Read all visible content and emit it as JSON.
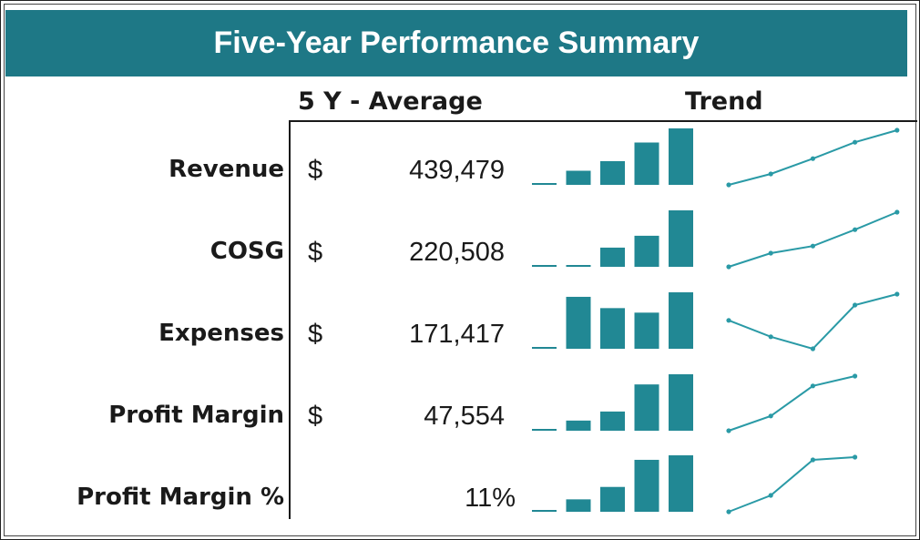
{
  "title": "Five-Year Performance Summary",
  "headers": {
    "average": "5 Y - Average",
    "trend": "Trend"
  },
  "colors": {
    "accent": "#1e7886",
    "bar": "#218894",
    "line": "#2a9aa6"
  },
  "rows": [
    {
      "label": "Revenue",
      "currency": "$",
      "value": "439,479"
    },
    {
      "label": "COSG",
      "currency": "$",
      "value": "220,508"
    },
    {
      "label": "Expenses",
      "currency": "$",
      "value": "171,417"
    },
    {
      "label": "Profit Margin",
      "currency": "$",
      "value": "47,554"
    },
    {
      "label": "Profit Margin %",
      "currency": "",
      "value": "11%"
    }
  ],
  "chart_data": {
    "type": "bar",
    "columns": [
      "5 Y - Average",
      "Trend"
    ],
    "categories": [
      "Revenue",
      "COSG",
      "Expenses",
      "Profit Margin",
      "Profit Margin %"
    ],
    "values": [
      439479,
      220508,
      171417,
      47554,
      0.11
    ],
    "sparklines": [
      {
        "name": "Revenue",
        "bars": [
          0.02,
          0.25,
          0.42,
          0.75,
          1.0
        ],
        "trend": [
          0,
          0.2,
          0.48,
          0.78,
          1.0
        ]
      },
      {
        "name": "COSG",
        "bars": [
          0.02,
          0.02,
          0.34,
          0.55,
          1.0
        ],
        "trend": [
          0,
          0.25,
          0.38,
          0.68,
          1.0
        ]
      },
      {
        "name": "Expenses",
        "bars": [
          0.03,
          0.92,
          0.72,
          0.64,
          1.0
        ],
        "trend": [
          0.52,
          0.22,
          0.0,
          0.8,
          1.0
        ]
      },
      {
        "name": "Profit Margin",
        "bars": [
          0.02,
          0.18,
          0.34,
          0.82,
          1.0
        ],
        "trend": [
          0,
          0.27,
          0.82,
          1.0
        ]
      },
      {
        "name": "Profit Margin %",
        "bars": [
          0.03,
          0.22,
          0.44,
          0.92,
          1.0
        ],
        "trend": [
          0,
          0.3,
          0.95,
          1.0
        ]
      }
    ]
  }
}
